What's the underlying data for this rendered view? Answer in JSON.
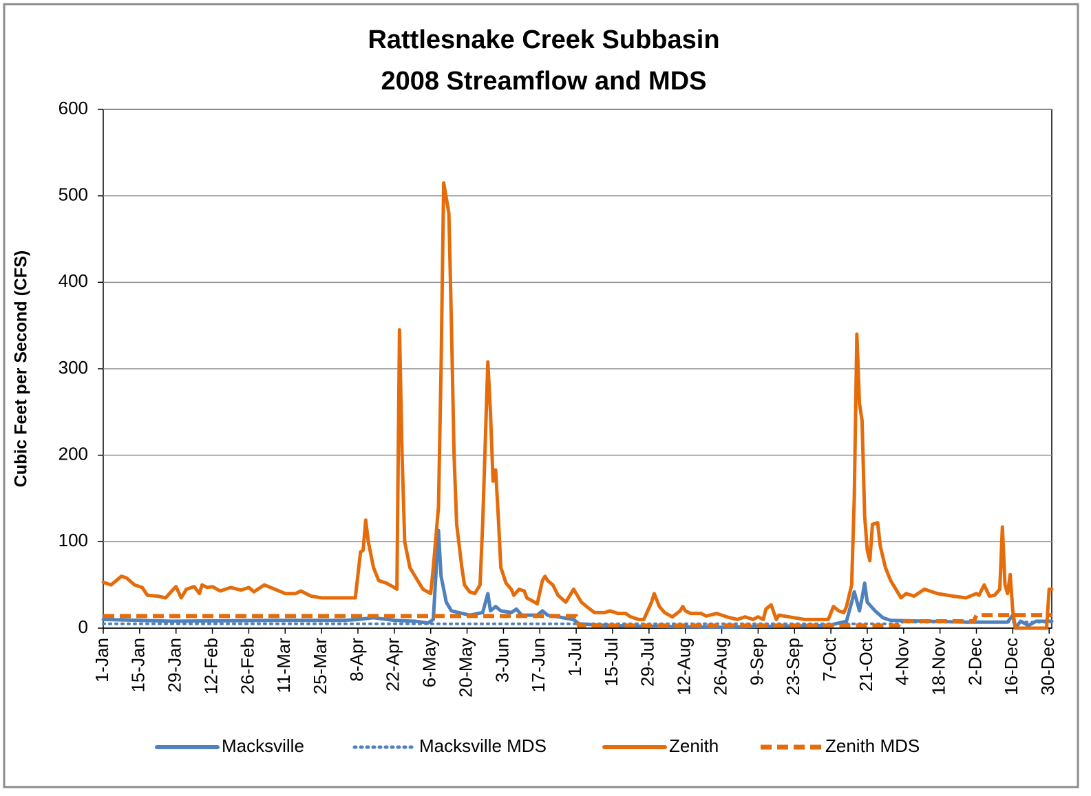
{
  "chart_data": {
    "type": "line",
    "title": [
      "Rattlesnake Creek Subbasin",
      "2008 Streamflow and MDS"
    ],
    "y_label": "Cubic Feet per Second (CFS)",
    "xlim": [
      1,
      366
    ],
    "xticks": [
      {
        "value": 1,
        "label": "1-Jan"
      },
      {
        "value": 15,
        "label": "15-Jan"
      },
      {
        "value": 29,
        "label": "29-Jan"
      },
      {
        "value": 43,
        "label": "12-Feb"
      },
      {
        "value": 57,
        "label": "26-Feb"
      },
      {
        "value": 71,
        "label": "11-Mar"
      },
      {
        "value": 85,
        "label": "25-Mar"
      },
      {
        "value": 99,
        "label": "8-Apr"
      },
      {
        "value": 113,
        "label": "22-Apr"
      },
      {
        "value": 127,
        "label": "6-May"
      },
      {
        "value": 141,
        "label": "20-May"
      },
      {
        "value": 155,
        "label": "3-Jun"
      },
      {
        "value": 169,
        "label": "17-Jun"
      },
      {
        "value": 183,
        "label": "1-Jul"
      },
      {
        "value": 197,
        "label": "15-Jul"
      },
      {
        "value": 211,
        "label": "29-Jul"
      },
      {
        "value": 225,
        "label": "12-Aug"
      },
      {
        "value": 239,
        "label": "26-Aug"
      },
      {
        "value": 253,
        "label": "9-Sep"
      },
      {
        "value": 267,
        "label": "23-Sep"
      },
      {
        "value": 281,
        "label": "7-Oct"
      },
      {
        "value": 295,
        "label": "21-Oct"
      },
      {
        "value": 309,
        "label": "4-Nov"
      },
      {
        "value": 323,
        "label": "18-Nov"
      },
      {
        "value": 337,
        "label": "2-Dec"
      },
      {
        "value": 351,
        "label": "16-Dec"
      },
      {
        "value": 365,
        "label": "30-Dec"
      }
    ],
    "ylim": [
      0,
      600
    ],
    "yticks": [
      0,
      100,
      200,
      300,
      400,
      500,
      600
    ],
    "grid": true,
    "series": [
      {
        "name": "Macksville",
        "color": "#4f81bd",
        "dash": "solid",
        "x": [
          1,
          28,
          67,
          94,
          99,
          105,
          113,
          121,
          126,
          128,
          130,
          131,
          133,
          135,
          142,
          147,
          149,
          150,
          152,
          154,
          158,
          160,
          162,
          168,
          170,
          172,
          182,
          184,
          195,
          213,
          240,
          253,
          280,
          287,
          289,
          290,
          292,
          293,
          294,
          295,
          298,
          301,
          304,
          333,
          349,
          351,
          352,
          354,
          357,
          360,
          366
        ],
        "values": [
          10,
          8,
          9,
          9,
          10,
          12,
          9,
          8,
          6,
          10,
          113,
          60,
          30,
          20,
          15,
          18,
          40,
          20,
          25,
          20,
          18,
          22,
          15,
          15,
          20,
          15,
          10,
          5,
          3,
          2,
          1,
          2,
          3,
          8,
          30,
          42,
          20,
          35,
          52,
          30,
          20,
          12,
          9,
          7,
          7,
          15,
          0,
          8,
          3,
          8,
          8
        ]
      },
      {
        "name": "Macksville MDS",
        "color": "#4f81bd",
        "dash": "dotted",
        "x": [
          1,
          307,
          308,
          366
        ],
        "values": [
          5,
          5,
          7,
          7
        ]
      },
      {
        "name": "Zenith",
        "color": "#e46c0a",
        "dash": "solid",
        "x": [
          1,
          4,
          8,
          10,
          13,
          16,
          18,
          22,
          25,
          28,
          29,
          31,
          33,
          36,
          38,
          39,
          41,
          43,
          46,
          50,
          54,
          57,
          59,
          63,
          67,
          71,
          75,
          77,
          81,
          85,
          89,
          94,
          98,
          100,
          101,
          102,
          103,
          105,
          107,
          110,
          113,
          114,
          115,
          116,
          117,
          119,
          122,
          124,
          127,
          128,
          130,
          131,
          132,
          134,
          135,
          136,
          137,
          139,
          140,
          142,
          144,
          146,
          147,
          149,
          150,
          151,
          152,
          153,
          154,
          156,
          158,
          159,
          161,
          163,
          164,
          167,
          168,
          170,
          171,
          172,
          174,
          176,
          179,
          181,
          182,
          183,
          185,
          187,
          190,
          194,
          196,
          199,
          202,
          204,
          207,
          209,
          212,
          213,
          215,
          217,
          220,
          223,
          224,
          225,
          227,
          231,
          233,
          237,
          241,
          245,
          248,
          251,
          253,
          255,
          256,
          258,
          260,
          261,
          265,
          271,
          276,
          280,
          282,
          284,
          286,
          287,
          289,
          290,
          291,
          292,
          293,
          294,
          295,
          296,
          297,
          299,
          300,
          302,
          304,
          306,
          308,
          310,
          313,
          317,
          322,
          328,
          333,
          337,
          338,
          340,
          342,
          344,
          346,
          347,
          348,
          349,
          350,
          351,
          352,
          354,
          358,
          364,
          365,
          366
        ],
        "values": [
          53,
          50,
          60,
          58,
          50,
          47,
          38,
          37,
          35,
          45,
          48,
          35,
          45,
          48,
          40,
          50,
          47,
          48,
          43,
          47,
          44,
          47,
          42,
          50,
          45,
          40,
          40,
          43,
          37,
          35,
          35,
          35,
          35,
          88,
          90,
          125,
          100,
          70,
          55,
          52,
          47,
          45,
          345,
          200,
          100,
          70,
          55,
          45,
          40,
          70,
          140,
          300,
          515,
          480,
          350,
          200,
          120,
          70,
          50,
          42,
          40,
          50,
          120,
          308,
          250,
          170,
          183,
          130,
          70,
          52,
          45,
          38,
          45,
          43,
          35,
          30,
          28,
          55,
          60,
          55,
          50,
          38,
          30,
          40,
          45,
          40,
          30,
          25,
          18,
          18,
          20,
          17,
          17,
          13,
          10,
          10,
          30,
          40,
          25,
          18,
          13,
          20,
          25,
          20,
          17,
          17,
          14,
          17,
          13,
          10,
          13,
          10,
          13,
          10,
          22,
          27,
          10,
          15,
          13,
          10,
          10,
          10,
          25,
          20,
          18,
          25,
          50,
          150,
          340,
          260,
          240,
          130,
          90,
          78,
          120,
          122,
          95,
          70,
          55,
          45,
          35,
          40,
          37,
          45,
          40,
          37,
          35,
          40,
          38,
          50,
          37,
          38,
          45,
          117,
          50,
          40,
          62,
          20,
          0,
          0,
          0,
          0,
          45,
          45
        ]
      },
      {
        "name": "Zenith MDS",
        "color": "#e46c0a",
        "dash": "dashed",
        "x": [
          1,
          183,
          184,
          307,
          308,
          336,
          337,
          366
        ],
        "values": [
          14,
          14,
          3,
          3,
          8,
          8,
          15,
          15
        ]
      }
    ]
  }
}
